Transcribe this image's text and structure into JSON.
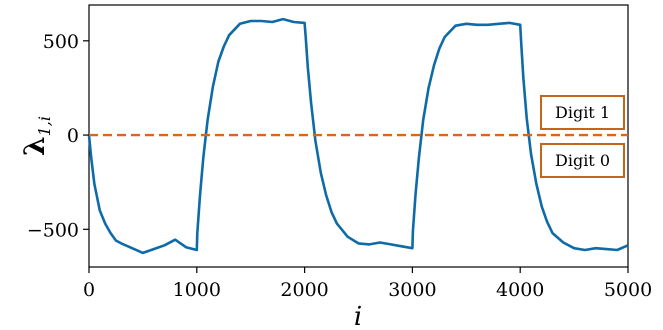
{
  "chart_data": {
    "type": "line",
    "xlabel": "i",
    "ylabel_main": "λ",
    "ylabel_sub": "1,i",
    "xlim": [
      0,
      5000
    ],
    "ylim": [
      -700,
      690
    ],
    "xticks": [
      0,
      1000,
      2000,
      3000,
      4000,
      5000
    ],
    "xtick_labels": [
      "0",
      "1000",
      "2000",
      "3000",
      "4000",
      "5000"
    ],
    "yticks": [
      -500,
      0,
      500
    ],
    "ytick_labels": [
      "−500",
      "0",
      "500"
    ],
    "grid": false,
    "series": [
      {
        "color": "#0f6ba8",
        "style": "solid",
        "x": [
          0,
          20,
          50,
          100,
          150,
          200,
          250,
          300,
          400,
          500,
          600,
          700,
          800,
          900,
          1000,
          1005,
          1030,
          1060,
          1100,
          1150,
          1200,
          1250,
          1300,
          1400,
          1500,
          1600,
          1700,
          1800,
          1900,
          2000,
          2010,
          2030,
          2060,
          2100,
          2150,
          2200,
          2250,
          2300,
          2400,
          2500,
          2600,
          2700,
          2800,
          2900,
          3000,
          3005,
          3030,
          3060,
          3100,
          3150,
          3200,
          3250,
          3300,
          3400,
          3500,
          3600,
          3700,
          3800,
          3900,
          4000,
          4010,
          4030,
          4060,
          4100,
          4150,
          4200,
          4250,
          4300,
          4400,
          4500,
          4600,
          4700,
          4800,
          4900,
          5000
        ],
        "y": [
          0,
          -120,
          -260,
          -400,
          -470,
          -520,
          -560,
          -575,
          -600,
          -625,
          -605,
          -585,
          -555,
          -595,
          -610,
          -520,
          -320,
          -120,
          80,
          260,
          390,
          470,
          530,
          590,
          605,
          605,
          600,
          615,
          600,
          595,
          520,
          360,
          170,
          -30,
          -200,
          -320,
          -410,
          -470,
          -540,
          -575,
          -580,
          -570,
          -580,
          -590,
          -600,
          -510,
          -310,
          -120,
          80,
          250,
          370,
          460,
          520,
          580,
          590,
          585,
          585,
          590,
          595,
          585,
          480,
          300,
          90,
          -100,
          -260,
          -380,
          -460,
          -520,
          -570,
          -600,
          -610,
          -600,
          -605,
          -610,
          -585
        ]
      },
      {
        "color": "#d9661a",
        "style": "dashed",
        "x": [
          0,
          5000
        ],
        "y": [
          0,
          0
        ]
      }
    ],
    "annotations": [
      {
        "text": "Digit 1",
        "edge_color": "#c4661a"
      },
      {
        "text": "Digit 0",
        "edge_color": "#c4661a"
      }
    ]
  }
}
